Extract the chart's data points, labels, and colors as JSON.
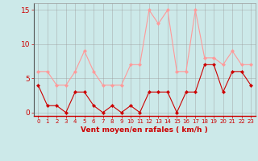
{
  "x": [
    0,
    1,
    2,
    3,
    4,
    5,
    6,
    7,
    8,
    9,
    10,
    11,
    12,
    13,
    14,
    15,
    16,
    17,
    18,
    19,
    20,
    21,
    22,
    23
  ],
  "wind_avg": [
    4,
    1,
    1,
    0,
    3,
    3,
    1,
    0,
    1,
    0,
    1,
    0,
    3,
    3,
    3,
    0,
    3,
    3,
    7,
    7,
    3,
    6,
    6,
    4
  ],
  "wind_gust": [
    6,
    6,
    4,
    4,
    6,
    9,
    6,
    4,
    4,
    4,
    7,
    7,
    15,
    13,
    15,
    6,
    6,
    15,
    8,
    8,
    7,
    9,
    7,
    7
  ],
  "bg_color": "#cce9e9",
  "grid_color": "#999999",
  "avg_color": "#cc0000",
  "gust_color": "#ff9999",
  "xlabel": "Vent moyen/en rafales ( km/h )",
  "xlabel_color": "#cc0000",
  "tick_color": "#cc0000",
  "ylim": [
    -0.5,
    16
  ],
  "yticks": [
    0,
    5,
    10,
    15
  ],
  "xlim": [
    -0.5,
    23.5
  ]
}
